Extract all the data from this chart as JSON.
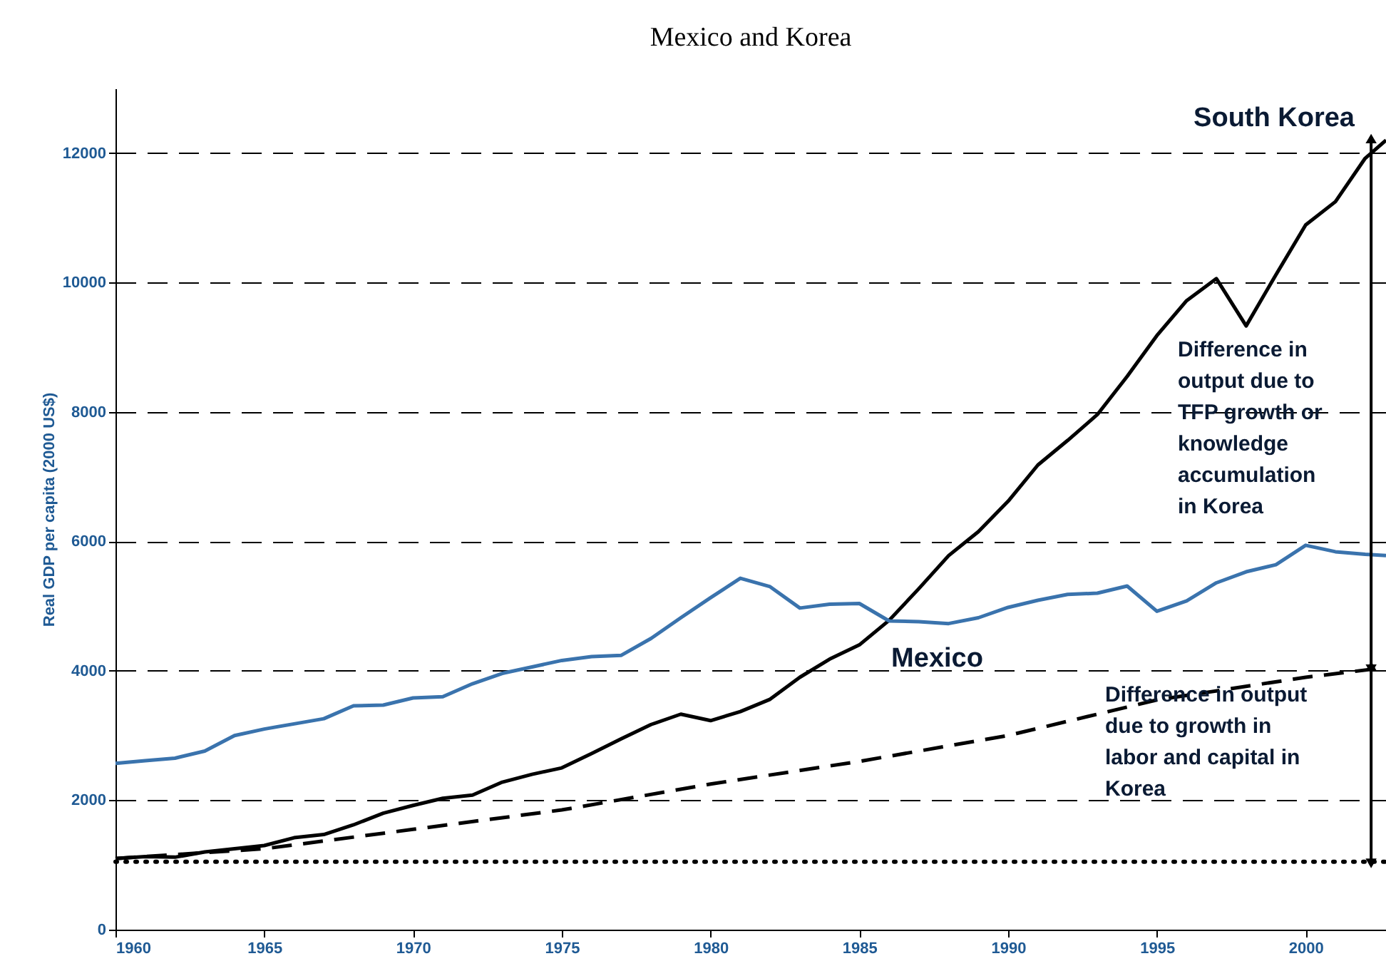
{
  "chart_data": {
    "type": "line",
    "title": "Mexico and Korea",
    "ylabel": "Real GDP per capita (2000 US$)",
    "x": [
      1960,
      1961,
      1962,
      1963,
      1964,
      1965,
      1966,
      1967,
      1968,
      1969,
      1970,
      1971,
      1972,
      1973,
      1974,
      1975,
      1976,
      1977,
      1978,
      1979,
      1980,
      1981,
      1982,
      1983,
      1984,
      1985,
      1986,
      1987,
      1988,
      1989,
      1990,
      1991,
      1992,
      1993,
      1994,
      1995,
      1996,
      1997,
      1998,
      1999,
      2000,
      2001,
      2002,
      2002.7
    ],
    "series": [
      {
        "name": "South Korea",
        "color": "#000000",
        "line_style": "solid",
        "values": [
          1100,
          1130,
          1120,
          1200,
          1250,
          1300,
          1420,
          1470,
          1620,
          1800,
          1920,
          2030,
          2080,
          2280,
          2400,
          2500,
          2720,
          2950,
          3170,
          3330,
          3230,
          3370,
          3560,
          3900,
          4180,
          4400,
          4780,
          5270,
          5780,
          6150,
          6620,
          7180,
          7560,
          7960,
          8550,
          9180,
          9720,
          10060,
          9330,
          10120,
          10890,
          11250,
          11920,
          12200
        ]
      },
      {
        "name": "Mexico",
        "color": "#3a73ad",
        "line_style": "solid",
        "values": [
          2570,
          2610,
          2650,
          2760,
          3000,
          3100,
          3180,
          3260,
          3460,
          3470,
          3580,
          3600,
          3800,
          3960,
          4060,
          4160,
          4220,
          4240,
          4500,
          4820,
          5130,
          5430,
          5300,
          4970,
          5030,
          5040,
          4770,
          4760,
          4730,
          4820,
          4980,
          5090,
          5180,
          5200,
          5310,
          4920,
          5080,
          5360,
          5530,
          5640,
          5940,
          5840,
          5800,
          5780
        ]
      },
      {
        "color": "#000000",
        "line_style": "dashed",
        "x": [
          1960,
          1965,
          1970,
          1975,
          1980,
          1985,
          1990,
          1995,
          2000,
          2002.7
        ],
        "values": [
          1100,
          1250,
          1550,
          1850,
          2250,
          2600,
          3000,
          3550,
          3900,
          4050
        ]
      },
      {
        "color": "#000000",
        "line_style": "dotted",
        "x": [
          1960,
          2002.7
        ],
        "values": [
          1050,
          1050
        ]
      }
    ],
    "annotations": [
      "Difference in output due to TFP growth or knowledge accumulation in Korea",
      "Difference in output due to growth in labor and capital in Korea"
    ],
    "xlim": [
      1960,
      2002.7
    ],
    "xticks": [
      1960,
      1965,
      1970,
      1975,
      1980,
      1985,
      1990,
      1995,
      2000
    ],
    "ylim": [
      0,
      13000
    ],
    "yticks": [
      0,
      2000,
      4000,
      6000,
      8000,
      10000,
      12000
    ],
    "grid": "y",
    "marker": "none"
  }
}
